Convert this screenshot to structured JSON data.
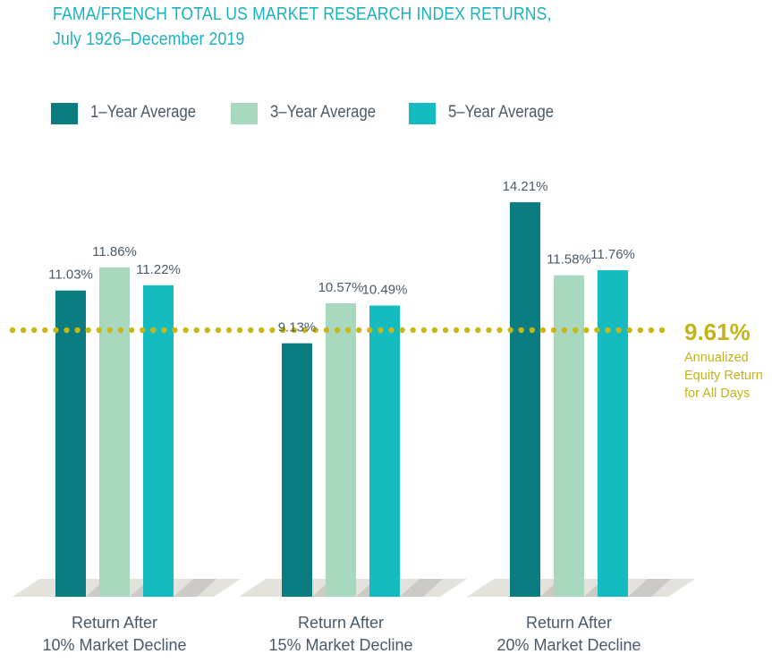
{
  "header": {
    "title_line1": "FAMA/FRENCH TOTAL US MARKET RESEARCH INDEX RETURNS,",
    "title_line2": "July 1926–December 2019"
  },
  "colors": {
    "title": "#1ab3bd",
    "one_year": "#0b7c80",
    "three_year": "#a8d8bd",
    "five_year": "#14bcbf",
    "reference": "#c9b718",
    "floor": "#e3e2dc",
    "floor_shadow": "#cbcac6",
    "text": "#4b5a68"
  },
  "chart_data": {
    "type": "bar",
    "title": "FAMA/FRENCH TOTAL US MARKET RESEARCH INDEX RETURNS, July 1926–December 2019",
    "xlabel": "",
    "ylabel": "",
    "ylim": [
      0,
      14.21
    ],
    "grid": false,
    "legend_position": "top-left",
    "categories": [
      "Return After 10% Market Decline",
      "Return After 15% Market Decline",
      "Return After 20% Market Decline"
    ],
    "category_lines": [
      [
        "Return After",
        "10% Market Decline"
      ],
      [
        "Return After",
        "15% Market Decline"
      ],
      [
        "Return After",
        "20% Market Decline"
      ]
    ],
    "series": [
      {
        "name": "1–Year Average",
        "color_key": "one_year",
        "values": [
          11.03,
          9.13,
          14.21
        ],
        "labels": [
          "11.03%",
          "9.13%",
          "14.21%"
        ]
      },
      {
        "name": "3–Year Average",
        "color_key": "three_year",
        "values": [
          11.86,
          10.57,
          11.58
        ],
        "labels": [
          "11.86%",
          "10.57%",
          "11.58%"
        ]
      },
      {
        "name": "5–Year Average",
        "color_key": "five_year",
        "values": [
          11.22,
          10.49,
          11.76
        ],
        "labels": [
          "11.22%",
          "10.49%",
          "11.76%"
        ]
      }
    ],
    "reference_line": {
      "value": 9.61,
      "label": "9.61%",
      "caption_lines": [
        "Annualized",
        "Equity Return",
        "for All Days"
      ],
      "style": "dotted"
    }
  }
}
